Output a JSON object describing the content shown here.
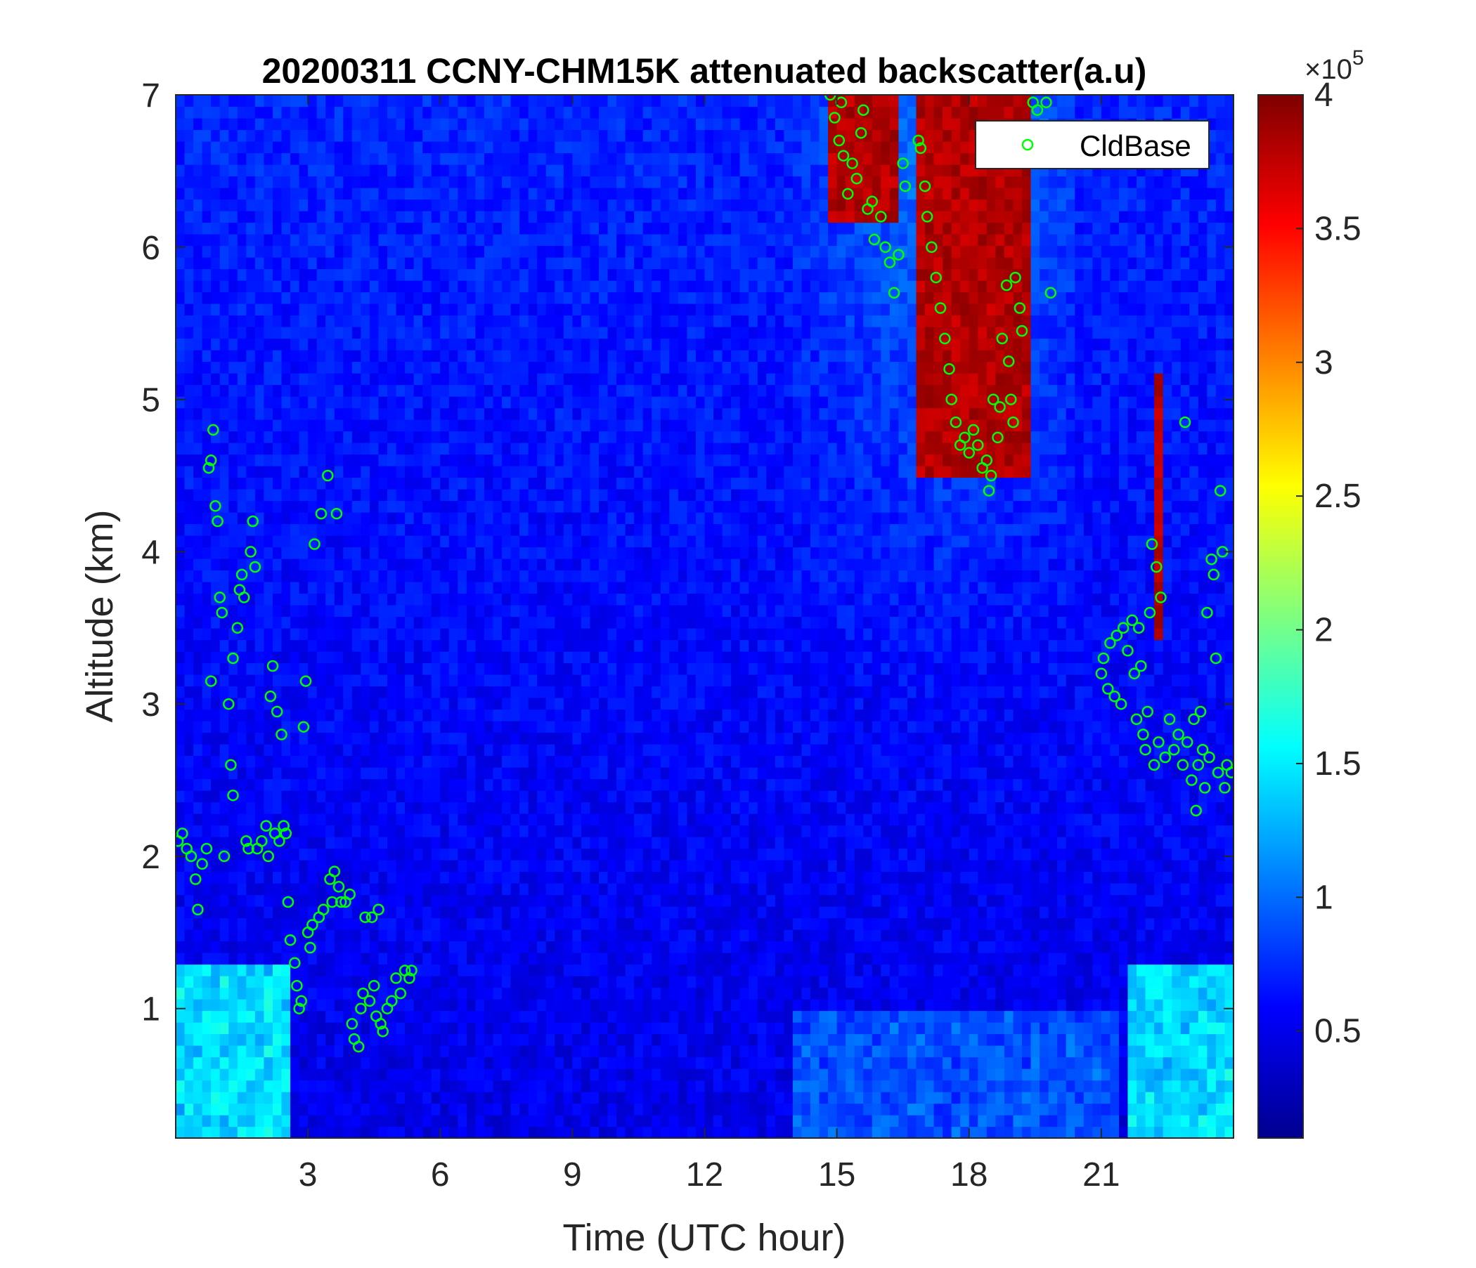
{
  "chart_data": {
    "type": "heatmap",
    "title": "20200311 CCNY-CHM15K attenuated backscatter(a.u)",
    "xlabel": "Time (UTC hour)",
    "ylabel": "Altitude (km)",
    "xlim": [
      0,
      24
    ],
    "ylim": [
      0.15,
      7
    ],
    "x_ticks": [
      "3",
      "6",
      "9",
      "12",
      "15",
      "18",
      "21"
    ],
    "x_tick_values": [
      3,
      6,
      9,
      12,
      15,
      18,
      21
    ],
    "y_ticks": [
      "1",
      "2",
      "3",
      "4",
      "5",
      "6",
      "7"
    ],
    "y_tick_values": [
      1,
      2,
      3,
      4,
      5,
      6,
      7
    ],
    "colorbar": {
      "colormap": "jet",
      "clim": [
        0.1,
        4
      ],
      "ticks": [
        "0.5",
        "1",
        "1.5",
        "2",
        "2.5",
        "3",
        "3.5",
        "4"
      ],
      "tick_values": [
        0.5,
        1,
        1.5,
        2,
        2.5,
        3,
        3.5,
        4
      ],
      "exponent_label": "×10",
      "exponent_power": "5"
    },
    "legend": {
      "entry": "CldBase",
      "position": "top-right",
      "marker_color": "#00ff00"
    },
    "cloud_base": {
      "name": "CldBase",
      "marker": "circle",
      "color": "#00ff00",
      "points": [
        [
          0.05,
          2.1
        ],
        [
          0.15,
          2.15
        ],
        [
          0.25,
          2.05
        ],
        [
          0.35,
          2.0
        ],
        [
          0.45,
          1.85
        ],
        [
          0.5,
          1.65
        ],
        [
          0.6,
          1.95
        ],
        [
          0.7,
          2.05
        ],
        [
          0.75,
          4.55
        ],
        [
          0.8,
          4.6
        ],
        [
          0.85,
          4.8
        ],
        [
          0.9,
          4.3
        ],
        [
          0.95,
          4.2
        ],
        [
          0.8,
          3.15
        ],
        [
          1.0,
          3.7
        ],
        [
          1.05,
          3.6
        ],
        [
          1.1,
          2.0
        ],
        [
          1.2,
          3.0
        ],
        [
          1.25,
          2.6
        ],
        [
          1.3,
          2.4
        ],
        [
          1.3,
          3.3
        ],
        [
          1.4,
          3.5
        ],
        [
          1.45,
          3.75
        ],
        [
          1.5,
          3.85
        ],
        [
          1.55,
          3.7
        ],
        [
          1.6,
          2.1
        ],
        [
          1.65,
          2.05
        ],
        [
          1.7,
          4.0
        ],
        [
          1.75,
          4.2
        ],
        [
          1.8,
          3.9
        ],
        [
          1.85,
          2.05
        ],
        [
          1.95,
          2.1
        ],
        [
          2.05,
          2.2
        ],
        [
          2.1,
          2.0
        ],
        [
          2.15,
          3.05
        ],
        [
          2.2,
          3.25
        ],
        [
          2.25,
          2.15
        ],
        [
          2.3,
          2.95
        ],
        [
          2.35,
          2.1
        ],
        [
          2.4,
          2.8
        ],
        [
          2.45,
          2.2
        ],
        [
          2.5,
          2.15
        ],
        [
          2.55,
          1.7
        ],
        [
          2.6,
          1.45
        ],
        [
          2.7,
          1.3
        ],
        [
          2.75,
          1.15
        ],
        [
          2.8,
          1.0
        ],
        [
          2.85,
          1.05
        ],
        [
          2.9,
          2.85
        ],
        [
          2.95,
          3.15
        ],
        [
          3.0,
          1.5
        ],
        [
          3.05,
          1.4
        ],
        [
          3.1,
          1.55
        ],
        [
          3.15,
          4.05
        ],
        [
          3.25,
          1.6
        ],
        [
          3.3,
          4.25
        ],
        [
          3.35,
          1.65
        ],
        [
          3.45,
          4.5
        ],
        [
          3.5,
          1.85
        ],
        [
          3.55,
          1.7
        ],
        [
          3.6,
          1.9
        ],
        [
          3.65,
          4.25
        ],
        [
          3.7,
          1.8
        ],
        [
          3.75,
          1.7
        ],
        [
          3.85,
          1.7
        ],
        [
          3.95,
          1.75
        ],
        [
          4.0,
          0.9
        ],
        [
          4.05,
          0.8
        ],
        [
          4.15,
          0.75
        ],
        [
          4.2,
          1.0
        ],
        [
          4.25,
          1.1
        ],
        [
          4.3,
          1.6
        ],
        [
          4.4,
          1.05
        ],
        [
          4.45,
          1.6
        ],
        [
          4.5,
          1.15
        ],
        [
          4.55,
          0.95
        ],
        [
          4.6,
          1.65
        ],
        [
          4.65,
          0.9
        ],
        [
          4.7,
          0.85
        ],
        [
          4.8,
          1.0
        ],
        [
          4.9,
          1.05
        ],
        [
          5.0,
          1.2
        ],
        [
          5.1,
          1.1
        ],
        [
          5.2,
          1.25
        ],
        [
          5.3,
          1.2
        ],
        [
          5.35,
          1.25
        ],
        [
          14.85,
          7.0
        ],
        [
          14.95,
          6.85
        ],
        [
          15.05,
          6.7
        ],
        [
          15.1,
          6.95
        ],
        [
          15.15,
          6.6
        ],
        [
          15.25,
          6.35
        ],
        [
          15.35,
          6.55
        ],
        [
          15.45,
          6.45
        ],
        [
          15.55,
          6.75
        ],
        [
          15.6,
          6.9
        ],
        [
          15.7,
          6.25
        ],
        [
          15.8,
          6.3
        ],
        [
          15.85,
          6.05
        ],
        [
          16.0,
          6.2
        ],
        [
          16.1,
          6.0
        ],
        [
          16.2,
          5.9
        ],
        [
          16.3,
          5.7
        ],
        [
          16.4,
          5.95
        ],
        [
          16.5,
          6.55
        ],
        [
          16.55,
          6.4
        ],
        [
          16.85,
          6.7
        ],
        [
          16.9,
          6.65
        ],
        [
          17.0,
          6.4
        ],
        [
          17.05,
          6.2
        ],
        [
          17.15,
          6.0
        ],
        [
          17.25,
          5.8
        ],
        [
          17.35,
          5.6
        ],
        [
          17.45,
          5.4
        ],
        [
          17.55,
          5.2
        ],
        [
          17.6,
          5.0
        ],
        [
          17.7,
          4.85
        ],
        [
          17.8,
          4.7
        ],
        [
          17.9,
          4.75
        ],
        [
          18.0,
          4.65
        ],
        [
          18.1,
          4.8
        ],
        [
          18.2,
          4.7
        ],
        [
          18.3,
          4.55
        ],
        [
          18.4,
          4.6
        ],
        [
          18.45,
          4.4
        ],
        [
          18.5,
          4.5
        ],
        [
          18.55,
          5.0
        ],
        [
          18.65,
          4.75
        ],
        [
          18.7,
          4.95
        ],
        [
          18.75,
          5.4
        ],
        [
          18.85,
          5.75
        ],
        [
          18.9,
          5.25
        ],
        [
          18.95,
          5.0
        ],
        [
          19.0,
          4.85
        ],
        [
          19.05,
          5.8
        ],
        [
          19.15,
          5.6
        ],
        [
          19.2,
          5.45
        ],
        [
          19.45,
          6.95
        ],
        [
          19.55,
          6.9
        ],
        [
          19.75,
          6.95
        ],
        [
          19.85,
          5.7
        ],
        [
          21.0,
          3.2
        ],
        [
          21.05,
          3.3
        ],
        [
          21.15,
          3.1
        ],
        [
          21.2,
          3.4
        ],
        [
          21.3,
          3.05
        ],
        [
          21.35,
          3.45
        ],
        [
          21.45,
          3.0
        ],
        [
          21.5,
          3.5
        ],
        [
          21.6,
          3.35
        ],
        [
          21.7,
          3.55
        ],
        [
          21.75,
          3.2
        ],
        [
          21.8,
          2.9
        ],
        [
          21.85,
          3.5
        ],
        [
          21.9,
          3.25
        ],
        [
          21.95,
          2.8
        ],
        [
          22.0,
          2.7
        ],
        [
          22.05,
          2.95
        ],
        [
          22.1,
          3.6
        ],
        [
          22.15,
          4.05
        ],
        [
          22.2,
          2.6
        ],
        [
          22.25,
          3.9
        ],
        [
          22.3,
          2.75
        ],
        [
          22.35,
          3.7
        ],
        [
          22.45,
          2.65
        ],
        [
          22.55,
          2.9
        ],
        [
          22.65,
          2.7
        ],
        [
          22.75,
          2.8
        ],
        [
          22.85,
          2.6
        ],
        [
          22.9,
          4.85
        ],
        [
          22.95,
          2.75
        ],
        [
          23.05,
          2.5
        ],
        [
          23.1,
          2.9
        ],
        [
          23.15,
          2.3
        ],
        [
          23.2,
          2.6
        ],
        [
          23.25,
          2.95
        ],
        [
          23.3,
          2.7
        ],
        [
          23.35,
          2.45
        ],
        [
          23.4,
          3.6
        ],
        [
          23.45,
          2.65
        ],
        [
          23.5,
          3.95
        ],
        [
          23.55,
          3.85
        ],
        [
          23.6,
          3.3
        ],
        [
          23.65,
          2.55
        ],
        [
          23.7,
          4.4
        ],
        [
          23.75,
          4.0
        ],
        [
          23.8,
          2.45
        ],
        [
          23.85,
          2.6
        ],
        [
          23.95,
          2.55
        ]
      ]
    }
  }
}
